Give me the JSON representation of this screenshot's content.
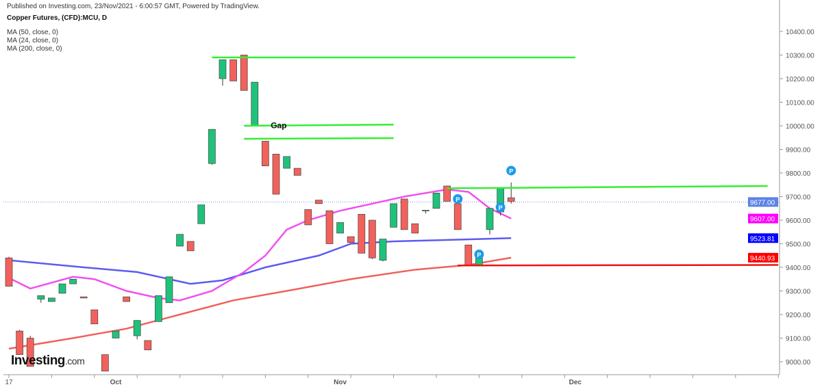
{
  "header": {
    "published": "Published on Investing.com, 23/Nov/2021 - 6:00:57 GMT, Powered by TradingView.",
    "title": "Copper Futures, (CFD):MCU, D",
    "indicators": [
      "MA (50, close, 0)",
      "MA (24, close, 0)",
      "MA (200, close, 0)"
    ]
  },
  "logo": {
    "main": "Investing",
    "suffix": ".com"
  },
  "chart_data": {
    "type": "candlestick",
    "title": "Copper Futures, (CFD):MCU, D",
    "ylim": [
      8950,
      10430
    ],
    "yticks": [
      9000,
      9100,
      9200,
      9300,
      9400,
      9500,
      9600,
      9700,
      9800,
      9900,
      10000,
      10100,
      10200,
      10300,
      10400
    ],
    "xticks": [
      {
        "label": "17",
        "index": 0
      },
      {
        "label": "Oct",
        "index": 10
      },
      {
        "label": "Nov",
        "index": 31
      },
      {
        "label": "Dec",
        "index": 53
      }
    ],
    "candles": [
      [
        9440,
        9445,
        9320,
        9320
      ],
      [
        9130,
        9135,
        9030,
        9030
      ],
      [
        9100,
        9110,
        8980,
        8980
      ],
      [
        9265,
        9280,
        9250,
        9280
      ],
      [
        9255,
        9270,
        9255,
        9270
      ],
      [
        9290,
        9330,
        9290,
        9330
      ],
      [
        9330,
        9350,
        9330,
        9350
      ],
      [
        9275,
        9275,
        9270,
        9270
      ],
      [
        9220,
        9220,
        9160,
        9160
      ],
      [
        9030,
        9030,
        8960,
        8960
      ],
      [
        9100,
        9130,
        9100,
        9130
      ],
      [
        9275,
        9275,
        9255,
        9255
      ],
      [
        9110,
        9175,
        9095,
        9175
      ],
      [
        9090,
        9090,
        9050,
        9050
      ],
      [
        9170,
        9280,
        9170,
        9280
      ],
      [
        9250,
        9360,
        9250,
        9360
      ],
      [
        9490,
        9540,
        9490,
        9540
      ],
      [
        9510,
        9510,
        9470,
        9470
      ],
      [
        9585,
        9665,
        9585,
        9665
      ],
      [
        9840,
        9985,
        9835,
        9985
      ],
      [
        10200,
        10280,
        10170,
        10280
      ],
      [
        10280,
        10280,
        10190,
        10190
      ],
      [
        10300,
        10300,
        10150,
        10150
      ],
      [
        10000,
        10185,
        10000,
        10185
      ],
      [
        9935,
        9935,
        9830,
        9830
      ],
      [
        9880,
        9880,
        9710,
        9710
      ],
      [
        9820,
        9870,
        9820,
        9870
      ],
      [
        9820,
        9820,
        9790,
        9790
      ],
      [
        9645,
        9645,
        9580,
        9580
      ],
      [
        9685,
        9685,
        9670,
        9670
      ],
      [
        9640,
        9640,
        9500,
        9500
      ],
      [
        9545,
        9590,
        9545,
        9590
      ],
      [
        9530,
        9530,
        9505,
        9505
      ],
      [
        9625,
        9625,
        9460,
        9460
      ],
      [
        9600,
        9600,
        9435,
        9440
      ],
      [
        9430,
        9520,
        9425,
        9520
      ],
      [
        9570,
        9670,
        9570,
        9670
      ],
      [
        9690,
        9690,
        9560,
        9560
      ],
      [
        9585,
        9585,
        9545,
        9545
      ],
      [
        9640,
        9642,
        9628,
        9642
      ],
      [
        9650,
        9715,
        9650,
        9715
      ],
      [
        9745,
        9745,
        9680,
        9680
      ],
      [
        9670,
        9670,
        9560,
        9560
      ],
      [
        9495,
        9495,
        9410,
        9410
      ],
      [
        9410,
        9440,
        9405,
        9440
      ],
      [
        9560,
        9650,
        9540,
        9650
      ],
      [
        9635,
        9735,
        9620,
        9735
      ],
      [
        9695,
        9760,
        9670,
        9680
      ]
    ],
    "series": [
      {
        "name": "MA (50, close, 0)",
        "color": "#5b5bf0",
        "last": "9523.81",
        "points": [
          [
            0,
            9430
          ],
          [
            7,
            9400
          ],
          [
            12,
            9380
          ],
          [
            17,
            9330
          ],
          [
            20,
            9345
          ],
          [
            24,
            9400
          ],
          [
            29,
            9450
          ],
          [
            32,
            9500
          ],
          [
            36,
            9510
          ],
          [
            40,
            9515
          ],
          [
            44,
            9520
          ],
          [
            47,
            9524
          ]
        ]
      },
      {
        "name": "MA (24, close, 0)",
        "color": "#f050f0",
        "last": "9607.00",
        "points": [
          [
            0,
            9355
          ],
          [
            2,
            9310
          ],
          [
            6,
            9360
          ],
          [
            8,
            9350
          ],
          [
            11,
            9300
          ],
          [
            14,
            9270
          ],
          [
            16,
            9260
          ],
          [
            19,
            9300
          ],
          [
            22,
            9380
          ],
          [
            24,
            9450
          ],
          [
            26,
            9560
          ],
          [
            28,
            9600
          ],
          [
            31,
            9640
          ],
          [
            33,
            9660
          ],
          [
            37,
            9700
          ],
          [
            41,
            9730
          ],
          [
            43,
            9720
          ],
          [
            45,
            9650
          ],
          [
            47,
            9607
          ]
        ]
      },
      {
        "name": "MA (200, close, 0)",
        "color": "#f0605a",
        "last": "9440.93",
        "points": [
          [
            0,
            9055
          ],
          [
            6,
            9100
          ],
          [
            11,
            9140
          ],
          [
            16,
            9200
          ],
          [
            21,
            9260
          ],
          [
            26,
            9300
          ],
          [
            32,
            9350
          ],
          [
            38,
            9390
          ],
          [
            43,
            9410
          ],
          [
            47,
            9441
          ]
        ]
      }
    ],
    "last_price": "9677.00",
    "annotations": {
      "lines": [
        {
          "color": "#33ee33",
          "from": [
            19,
            10290
          ],
          "to": [
            53,
            10290
          ]
        },
        {
          "color": "#33ee33",
          "from": [
            22,
            10000
          ],
          "to": [
            36,
            10005
          ]
        },
        {
          "color": "#33ee33",
          "from": [
            22,
            9945
          ],
          "to": [
            36,
            9948
          ]
        },
        {
          "color": "#33ee33",
          "from": [
            41,
            9735
          ],
          "to": [
            71,
            9745
          ]
        },
        {
          "color": "#ee1111",
          "from": [
            42,
            9408
          ],
          "to": [
            72,
            9410
          ]
        }
      ],
      "gap_label": {
        "text": "Gap",
        "index": 24.5,
        "price": 9975
      },
      "pivots": [
        [
          47,
          9810
        ],
        [
          42,
          9690
        ],
        [
          46,
          9655
        ],
        [
          44,
          9455
        ]
      ],
      "pivot_text": "P"
    }
  }
}
